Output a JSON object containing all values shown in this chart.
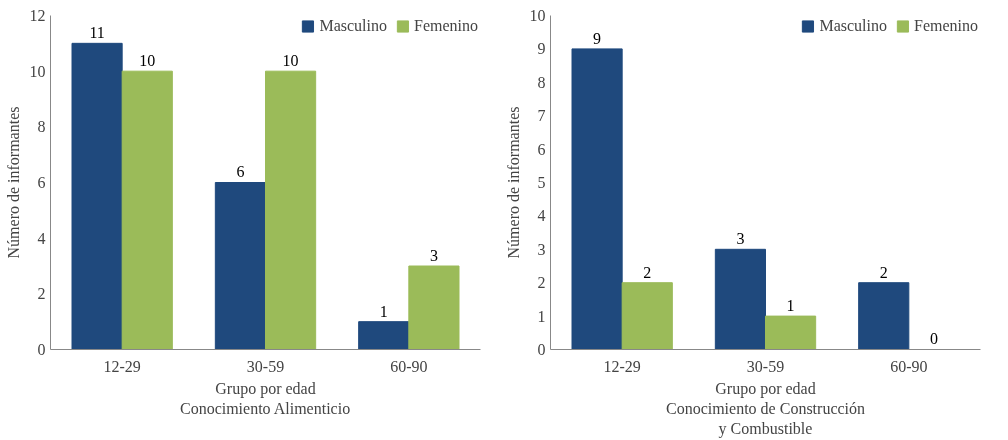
{
  "chart_data": [
    {
      "type": "bar",
      "categories": [
        "12-29",
        "30-59",
        "60-90"
      ],
      "xlabel": "Grupo por edad\nConocimiento Alimenticio",
      "ylabel": "Número de informantes",
      "ylim": [
        0,
        12
      ],
      "yticks": [
        0,
        2,
        4,
        6,
        8,
        10,
        12
      ],
      "grid": false,
      "legend": "top right",
      "data_labels": true,
      "series": [
        {
          "name": "Masculino",
          "color": "#1f497d",
          "values": [
            11,
            6,
            1
          ]
        },
        {
          "name": "Femenino",
          "color": "#9bbb59",
          "values": [
            10,
            10,
            3
          ]
        }
      ]
    },
    {
      "type": "bar",
      "categories": [
        "12-29",
        "30-59",
        "60-90"
      ],
      "xlabel": "Grupo por edad\nConocimiento de Construcción\ny Combustible",
      "ylabel": "Número de informantes",
      "ylim": [
        0,
        10
      ],
      "yticks": [
        0,
        1,
        2,
        3,
        4,
        5,
        6,
        7,
        8,
        9,
        10
      ],
      "grid": false,
      "legend": "top right",
      "data_labels": true,
      "series": [
        {
          "name": "Masculino",
          "color": "#1f497d",
          "values": [
            9,
            3,
            2
          ]
        },
        {
          "name": "Femenino",
          "color": "#9bbb59",
          "values": [
            2,
            1,
            0
          ]
        }
      ]
    }
  ]
}
